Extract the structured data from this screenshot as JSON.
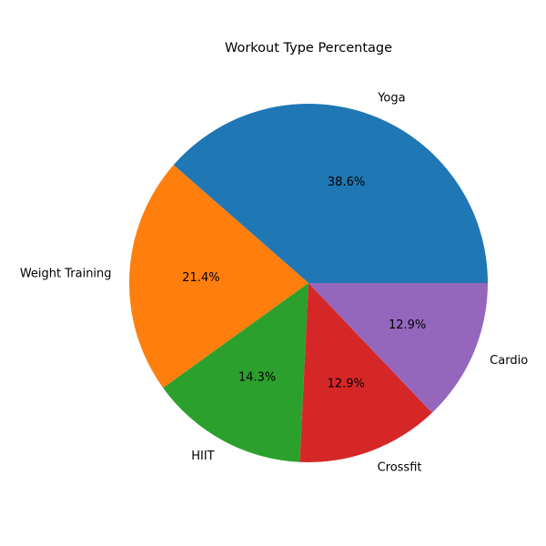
{
  "chart_data": {
    "type": "pie",
    "title": "Workout Type Percentage",
    "categories": [
      "Yoga",
      "Weight Training",
      "HIIT",
      "Crossfit",
      "Cardio"
    ],
    "values": [
      38.6,
      21.4,
      14.3,
      12.9,
      12.9
    ],
    "value_labels": [
      "38.6%",
      "21.4%",
      "14.3%",
      "12.9%",
      "12.9%"
    ],
    "colors": [
      "#1f77b4",
      "#ff7f0e",
      "#2ca02c",
      "#d62728",
      "#9467bd"
    ],
    "start_angle_deg": 0,
    "direction": "counterclockwise",
    "legend": "none"
  }
}
